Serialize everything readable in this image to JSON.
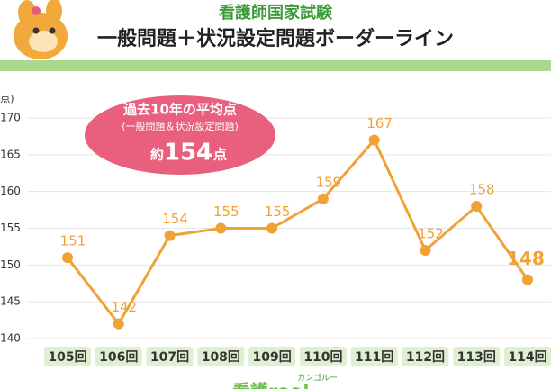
{
  "chart_data": {
    "type": "line",
    "title": "看護師国家試験",
    "subtitle": "一般問題＋状況設定問題ボーダーライン",
    "y_label": "(点)",
    "categories": [
      "105回",
      "106回",
      "107回",
      "108回",
      "109回",
      "110回",
      "111回",
      "112回",
      "113回",
      "114回"
    ],
    "series": [
      {
        "name": "ボーダーライン",
        "color": "#f0a236",
        "values": [
          151,
          142,
          154,
          155,
          155,
          159,
          167,
          152,
          158,
          148
        ]
      }
    ],
    "ylim": [
      140,
      170
    ],
    "yticks": [
      140,
      145,
      150,
      155,
      160,
      165,
      170
    ],
    "grid": true,
    "annotation": {
      "title": "過去10年の平均点",
      "subtitle": "(一般問題＆状況設定問題)",
      "prefix": "約",
      "value": 154,
      "suffix": "点"
    },
    "footer_logo": {
      "small": "カンゴルー",
      "text": "看護roo!"
    }
  }
}
